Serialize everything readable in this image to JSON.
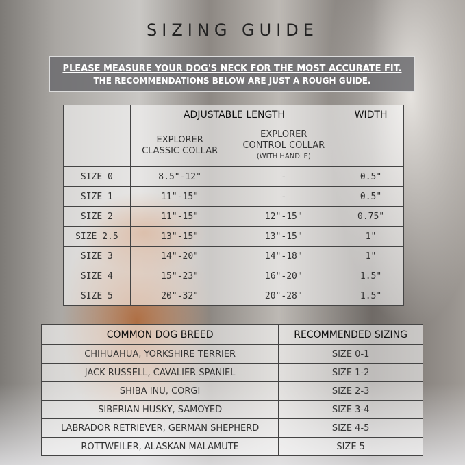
{
  "title": "SIZING GUIDE",
  "banner": {
    "line1": "PLEASE MEASURE YOUR DOG'S NECK FOR THE MOST ACCURATE FIT.",
    "line2": "THE RECOMMENDATIONS BELOW ARE JUST A ROUGH GUIDE."
  },
  "size_table": {
    "group_headers": {
      "length": "ADJUSTABLE LENGTH",
      "width": "WIDTH"
    },
    "columns": {
      "classic_line1": "EXPLORER",
      "classic_line2": "CLASSIC COLLAR",
      "control_line1": "EXPLORER",
      "control_line2": "CONTROL COLLAR",
      "control_note": "(WITH HANDLE)"
    },
    "rows": [
      {
        "size": "SIZE 0",
        "classic": "8.5\"-12\"",
        "control": "-",
        "width": "0.5\""
      },
      {
        "size": "SIZE 1",
        "classic": "11\"-15\"",
        "control": "-",
        "width": "0.5\""
      },
      {
        "size": "SIZE 2",
        "classic": "11\"-15\"",
        "control": "12\"-15\"",
        "width": "0.75\""
      },
      {
        "size": "SIZE 2.5",
        "classic": "13\"-15\"",
        "control": "13\"-15\"",
        "width": "1\""
      },
      {
        "size": "SIZE 3",
        "classic": "14\"-20\"",
        "control": "14\"-18\"",
        "width": "1\""
      },
      {
        "size": "SIZE 4",
        "classic": "15\"-23\"",
        "control": "16\"-20\"",
        "width": "1.5\""
      },
      {
        "size": "SIZE 5",
        "classic": "20\"-32\"",
        "control": "20\"-28\"",
        "width": "1.5\""
      }
    ]
  },
  "breed_table": {
    "headers": {
      "breed": "COMMON DOG BREED",
      "sizing": "RECOMMENDED SIZING"
    },
    "rows": [
      {
        "breed": "CHIHUAHUA, YORKSHIRE TERRIER",
        "sizing": "SIZE 0-1"
      },
      {
        "breed": "JACK RUSSELL, CAVALIER SPANIEL",
        "sizing": "SIZE 1-2"
      },
      {
        "breed": "SHIBA INU, CORGI",
        "sizing": "SIZE 2-3"
      },
      {
        "breed": "SIBERIAN HUSKY, SAMOYED",
        "sizing": "SIZE 3-4"
      },
      {
        "breed": "LABRADOR RETRIEVER, GERMAN SHEPHERD",
        "sizing": "SIZE 4-5"
      },
      {
        "breed": "ROTTWEILER, ALASKAN MALAMUTE",
        "sizing": "SIZE 5"
      }
    ]
  }
}
